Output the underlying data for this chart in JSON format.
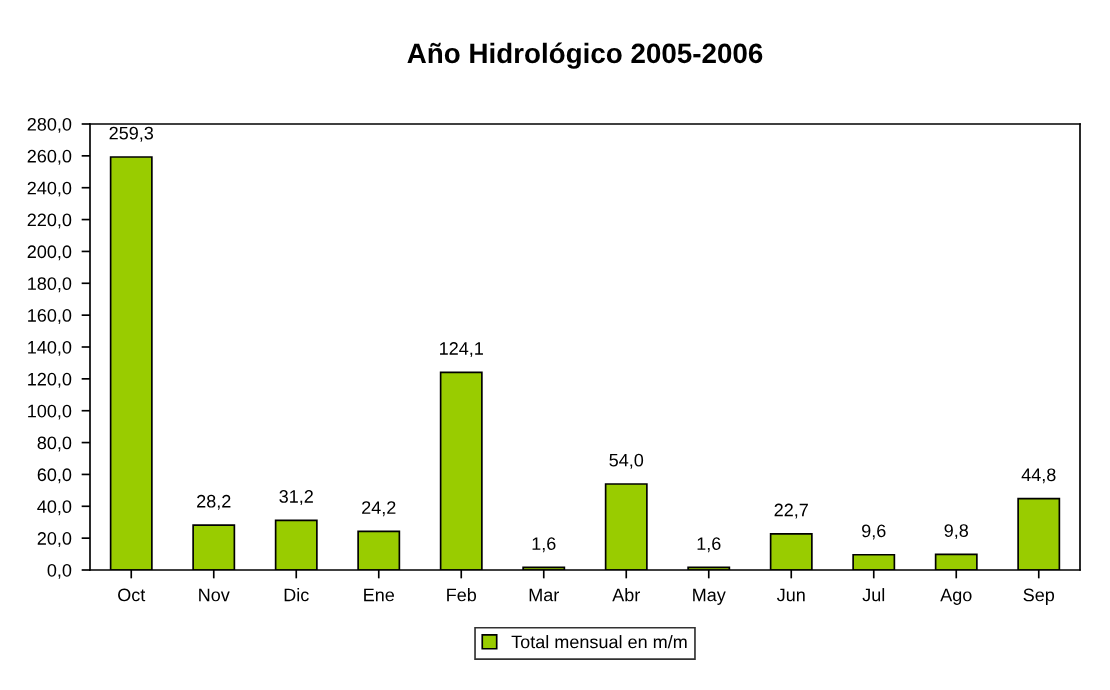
{
  "chart_data": {
    "type": "bar",
    "title": "Año Hidrológico 2005-2006",
    "categories": [
      "Oct",
      "Nov",
      "Dic",
      "Ene",
      "Feb",
      "Mar",
      "Abr",
      "May",
      "Jun",
      "Jul",
      "Ago",
      "Sep"
    ],
    "series": [
      {
        "name": "Total mensual en m/m",
        "color": "#99cc00",
        "values": [
          259.3,
          28.2,
          31.2,
          24.2,
          124.1,
          1.6,
          54.0,
          1.6,
          22.7,
          9.6,
          9.8,
          44.8
        ],
        "value_labels": [
          "259,3",
          "28,2",
          "31,2",
          "24,2",
          "124,1",
          "1,6",
          "54,0",
          "1,6",
          "22,7",
          "9,6",
          "9,8",
          "44,8"
        ]
      }
    ],
    "ylim": [
      0,
      280
    ],
    "yticks": [
      {
        "value": 0,
        "label": "0,0"
      },
      {
        "value": 20,
        "label": "20,0"
      },
      {
        "value": 40,
        "label": "40,0"
      },
      {
        "value": 60,
        "label": "60,0"
      },
      {
        "value": 80,
        "label": "80,0"
      },
      {
        "value": 100,
        "label": "100,0"
      },
      {
        "value": 120,
        "label": "120,0"
      },
      {
        "value": 140,
        "label": "140,0"
      },
      {
        "value": 160,
        "label": "160,0"
      },
      {
        "value": 180,
        "label": "180,0"
      },
      {
        "value": 200,
        "label": "200,0"
      },
      {
        "value": 220,
        "label": "220,0"
      },
      {
        "value": 240,
        "label": "240,0"
      },
      {
        "value": 260,
        "label": "260,0"
      },
      {
        "value": 280,
        "label": "280,0"
      }
    ],
    "grid": false,
    "legend": "bottom"
  }
}
